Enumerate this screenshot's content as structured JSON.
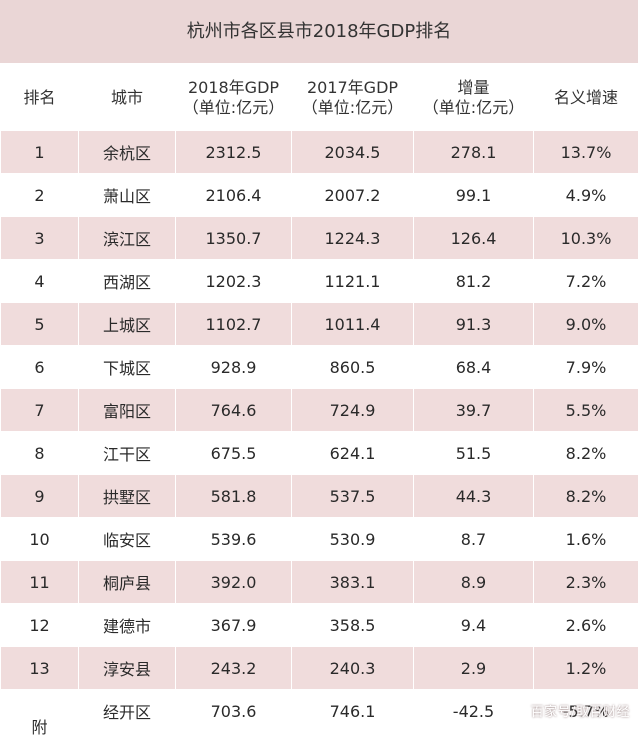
{
  "title": "杭州市各区县市2018年GDP排名",
  "headers": {
    "rank": "排名",
    "city": "城市",
    "gdp2018_line1": "2018年GDP",
    "gdp2018_line2": "（单位:亿元）",
    "gdp2017_line1": "2017年GDP",
    "gdp2017_line2": "（单位:亿元）",
    "increase_line1": "增量",
    "increase_line2": "（单位:亿元）",
    "nominal_growth": "名义增速"
  },
  "rows": [
    {
      "rank": "1",
      "city": "余杭区",
      "gdp2018": "2312.5",
      "gdp2017": "2034.5",
      "increase": "278.1",
      "growth": "13.7%"
    },
    {
      "rank": "2",
      "city": "萧山区",
      "gdp2018": "2106.4",
      "gdp2017": "2007.2",
      "increase": "99.1",
      "growth": "4.9%"
    },
    {
      "rank": "3",
      "city": "滨江区",
      "gdp2018": "1350.7",
      "gdp2017": "1224.3",
      "increase": "126.4",
      "growth": "10.3%"
    },
    {
      "rank": "4",
      "city": "西湖区",
      "gdp2018": "1202.3",
      "gdp2017": "1121.1",
      "increase": "81.2",
      "growth": "7.2%"
    },
    {
      "rank": "5",
      "city": "上城区",
      "gdp2018": "1102.7",
      "gdp2017": "1011.4",
      "increase": "91.3",
      "growth": "9.0%"
    },
    {
      "rank": "6",
      "city": "下城区",
      "gdp2018": "928.9",
      "gdp2017": "860.5",
      "increase": "68.4",
      "growth": "7.9%"
    },
    {
      "rank": "7",
      "city": "富阳区",
      "gdp2018": "764.6",
      "gdp2017": "724.9",
      "increase": "39.7",
      "growth": "5.5%"
    },
    {
      "rank": "8",
      "city": "江干区",
      "gdp2018": "675.5",
      "gdp2017": "624.1",
      "increase": "51.5",
      "growth": "8.2%"
    },
    {
      "rank": "9",
      "city": "拱墅区",
      "gdp2018": "581.8",
      "gdp2017": "537.5",
      "increase": "44.3",
      "growth": "8.2%"
    },
    {
      "rank": "10",
      "city": "临安区",
      "gdp2018": "539.6",
      "gdp2017": "530.9",
      "increase": "8.7",
      "growth": "1.6%"
    },
    {
      "rank": "11",
      "city": "桐庐县",
      "gdp2018": "392.0",
      "gdp2017": "383.1",
      "increase": "8.9",
      "growth": "2.3%"
    },
    {
      "rank": "12",
      "city": "建德市",
      "gdp2018": "367.9",
      "gdp2017": "358.5",
      "increase": "9.4",
      "growth": "2.6%"
    },
    {
      "rank": "13",
      "city": "淳安县",
      "gdp2018": "243.2",
      "gdp2017": "240.3",
      "increase": "2.9",
      "growth": "1.2%"
    }
  ],
  "appendix": {
    "label": "附",
    "city": "经开区",
    "gdp2018": "703.6",
    "gdp2017": "746.1",
    "increase": "-42.5",
    "growth": "-5.7%"
  },
  "watermark": "百家号/取百财经"
}
